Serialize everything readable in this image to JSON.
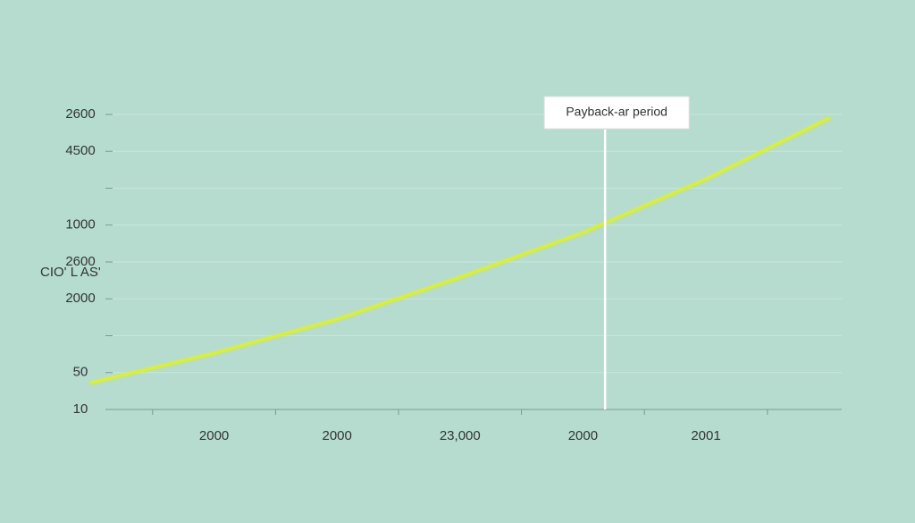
{
  "chart_data": {
    "type": "line",
    "ylabel": "CIO' L AS'",
    "categories": [
      null,
      "2000",
      "2000",
      "23,000",
      "2000",
      "2001",
      null
    ],
    "ylabels": [
      "10",
      "50",
      null,
      "2000",
      "2600",
      "1000",
      null,
      "4500",
      "2600"
    ],
    "ylim": [
      0,
      8
    ],
    "grid": true,
    "series": [
      {
        "name": null,
        "color": "#d9ef3a",
        "values": [
          0.73,
          1.53,
          2.45,
          3.59,
          4.8,
          6.25,
          7.9
        ]
      }
    ],
    "annotation": {
      "text": "Payback-ar period",
      "at": 4.18
    }
  }
}
